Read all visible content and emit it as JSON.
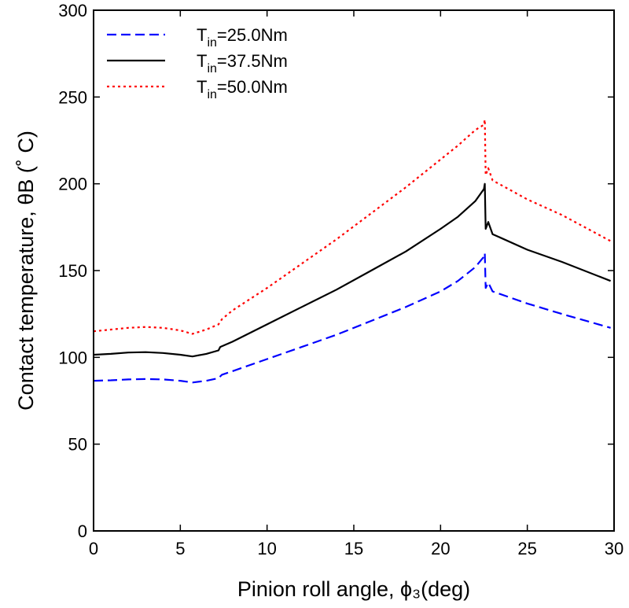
{
  "chart_data": {
    "type": "line",
    "xlabel": "Pinion roll angle, ϕ₃(deg)",
    "ylabel": "Contact temperature, θB (˚ C)",
    "xlim": [
      0,
      30
    ],
    "ylim": [
      0,
      300
    ],
    "xticks": [
      0,
      5,
      10,
      15,
      20,
      25,
      30
    ],
    "yticks": [
      0,
      50,
      100,
      150,
      200,
      250,
      300
    ],
    "grid": false,
    "legend_position": "top-left",
    "series": [
      {
        "name": "T_in=25.0Nm",
        "legend_main": "T",
        "legend_sub": "in",
        "legend_rest": "=25.0Nm",
        "color": "#0000ff",
        "style": "dashed",
        "x": [
          0,
          1,
          2,
          3,
          4,
          5,
          5.7,
          6.5,
          7.2,
          7.4,
          8,
          10,
          12,
          14,
          16,
          18,
          20,
          21,
          22,
          22.5,
          22.55,
          22.6,
          22.75,
          23,
          25,
          27,
          29.8
        ],
        "y": [
          86.5,
          86.8,
          87.3,
          87.5,
          87.3,
          86.5,
          85.5,
          86.5,
          88,
          90,
          92,
          99,
          106,
          113,
          121,
          129,
          138,
          144,
          152,
          158,
          160,
          140,
          143,
          138,
          131,
          125,
          117
        ]
      },
      {
        "name": "T_in=37.5Nm",
        "legend_main": "T",
        "legend_sub": "in",
        "legend_rest": "=37.5Nm",
        "color": "#000000",
        "style": "solid",
        "x": [
          0,
          1,
          2,
          3,
          4,
          5,
          5.7,
          6.5,
          7.2,
          7.3,
          8,
          10,
          12,
          14,
          16,
          18,
          20,
          21,
          22,
          22.5,
          22.55,
          22.6,
          22.75,
          23,
          25,
          27,
          29.8
        ],
        "y": [
          101.5,
          102,
          102.8,
          103,
          102.5,
          101.5,
          100.5,
          102,
          104,
          106,
          109,
          119,
          129,
          139,
          150,
          161,
          174,
          181,
          190,
          197,
          200,
          174,
          178,
          171,
          162,
          155,
          144
        ]
      },
      {
        "name": "T_in=50.0Nm",
        "legend_main": "T",
        "legend_sub": "in",
        "legend_rest": "=50.0Nm",
        "color": "#ff0000",
        "style": "dotted",
        "x": [
          0,
          1,
          2,
          3,
          4,
          5,
          5.7,
          6.5,
          7.2,
          7.4,
          8,
          10,
          12,
          14,
          16,
          18,
          20,
          21,
          22,
          22.5,
          22.55,
          22.6,
          22.75,
          23,
          25,
          27,
          29.8
        ],
        "y": [
          115,
          116,
          117,
          117.5,
          117,
          115.5,
          113.5,
          116,
          119,
          122,
          127,
          140,
          154,
          168,
          183,
          198,
          214,
          222,
          231,
          234,
          237,
          205,
          209,
          202,
          191,
          182,
          167
        ]
      }
    ]
  }
}
